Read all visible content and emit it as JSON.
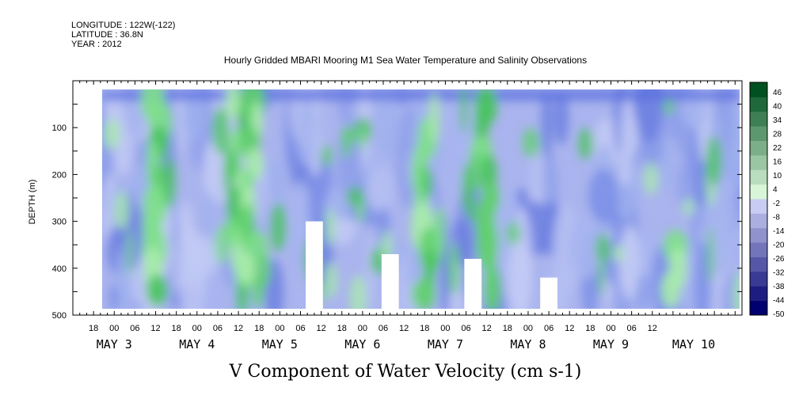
{
  "header": {
    "longitude": "LONGITUDE : 122W(-122)",
    "latitude": "LATITUDE : 36.8N",
    "year": "YEAR : 2012"
  },
  "chart_data": {
    "type": "heatmap",
    "title": "Hourly Gridded MBARI Mooring M1 Sea Water Temperature and Salinity Observations",
    "xlabel": "",
    "ylabel": "DEPTH (m)",
    "caption": "V Component of Water Velocity (cm s-1)",
    "y_range": [
      0,
      500
    ],
    "y_ticks": [
      100,
      200,
      300,
      400,
      500
    ],
    "y_tick_labels": [
      "100",
      "200",
      "300",
      "400",
      "500"
    ],
    "x_hour_labels": [
      "18",
      "00",
      "06",
      "12",
      "18",
      "00",
      "06",
      "12",
      "18",
      "00",
      "06",
      "12",
      "18",
      "00",
      "06",
      "12",
      "18",
      "00",
      "06",
      "12",
      "18",
      "00",
      "06",
      "12",
      "18",
      "00",
      "06",
      "12"
    ],
    "x_day_labels": [
      "MAY 3",
      "MAY 4",
      "MAY 5",
      "MAY 6",
      "MAY 7",
      "MAY 8",
      "MAY 9",
      "MAY 10"
    ],
    "x_range": [
      "2012-05-02 12:00",
      "2012-05-10 14:00"
    ],
    "data_range": [
      "2012-05-03 02:00",
      "2012-05-10 12:00"
    ],
    "data_depth_range": [
      20,
      485
    ],
    "colorbar": {
      "levels": [
        -50,
        -44,
        -38,
        -32,
        -26,
        -20,
        -14,
        -8,
        -2,
        4,
        10,
        16,
        22,
        28,
        34,
        40,
        46
      ],
      "labels": [
        "46",
        "40",
        "34",
        "28",
        "22",
        "16",
        "10",
        "4",
        "-2",
        "-8",
        "-14",
        "-20",
        "-26",
        "-32",
        "-38",
        "-44",
        "-50"
      ]
    },
    "strong_northward_bands": [
      {
        "time": "2012-05-03 12:00",
        "depth": [
          20,
          470
        ]
      },
      {
        "time": "2012-05-04 12:00",
        "depth": [
          20,
          480
        ]
      },
      {
        "time": "2012-05-04 16:00",
        "depth": [
          20,
          470
        ]
      },
      {
        "time": "2012-05-06 18:00",
        "depth": [
          100,
          480
        ]
      },
      {
        "time": "2012-05-07 12:00",
        "depth": [
          30,
          470
        ]
      },
      {
        "time": "2012-05-09 18:00",
        "depth": [
          330,
          470
        ]
      }
    ],
    "missing_data_notches": [
      {
        "time": "2012-05-05 10:00",
        "depth_top": 300
      },
      {
        "time": "2012-05-06 08:00",
        "depth_top": 370
      },
      {
        "time": "2012-05-07 08:00",
        "depth_top": 380
      },
      {
        "time": "2012-05-08 06:00",
        "depth_top": 420
      }
    ],
    "colors": {
      "negative_max": "#00006e",
      "near_zero_negative": "#c8ccf2",
      "near_zero_positive": "#d8f5d8",
      "positive_max": "#005020"
    }
  }
}
